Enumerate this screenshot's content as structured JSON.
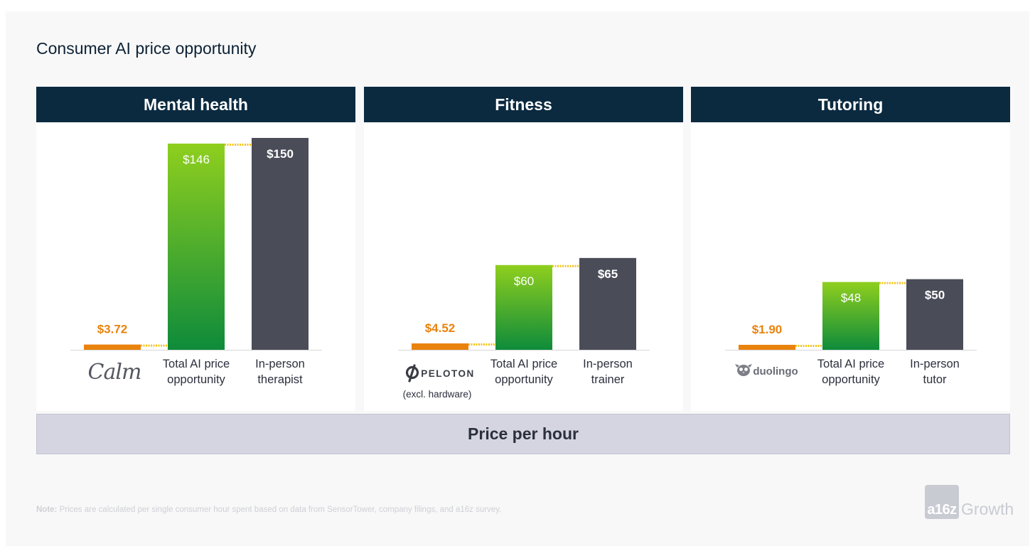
{
  "title": "Consumer AI price opportunity",
  "footer_bar": "Price per hour",
  "note": {
    "label": "Note:",
    "text": " Prices are calculated per single consumer hour spent based on data from SensorTower, company filings, and a16z survey."
  },
  "brand": {
    "box": "a16z",
    "word": "Growth"
  },
  "colors": {
    "header": "#0b2a40",
    "app_bar": "#e9830d",
    "ai_bar_top": "#8fcf1e",
    "ai_bar_bottom": "#0e8b3b",
    "in_person_bar": "#4a4c58",
    "gap_dots": "#f3c318",
    "app_value_text": "#e9830d"
  },
  "chart_data": [
    {
      "type": "bar",
      "title": "Mental health",
      "categories": [
        "Calm",
        "Total AI price opportunity",
        "In-person therapist"
      ],
      "values": [
        3.72,
        146,
        150
      ],
      "value_labels": [
        "$3.72",
        "$146",
        "$150"
      ],
      "brand_logo": {
        "name": "Calm",
        "icon": "calm-logo"
      },
      "labels": [
        "",
        "Total AI price\nopportunity",
        "In-person\ntherapist"
      ],
      "ylim": [
        0,
        150
      ],
      "grid": false
    },
    {
      "type": "bar",
      "title": "Fitness",
      "categories": [
        "Peloton",
        "Total AI price opportunity",
        "In-person trainer"
      ],
      "values": [
        4.52,
        60,
        65
      ],
      "value_labels": [
        "$4.52",
        "$60",
        "$65"
      ],
      "brand_logo": {
        "name": "PELOTON",
        "icon": "peloton-logo",
        "sub": "(excl. hardware)"
      },
      "labels": [
        "",
        "Total AI price\nopportunity",
        "In-person\ntrainer"
      ],
      "ylim": [
        0,
        150
      ],
      "grid": false
    },
    {
      "type": "bar",
      "title": "Tutoring",
      "categories": [
        "duolingo",
        "Total AI price opportunity",
        "In-person tutor"
      ],
      "values": [
        1.9,
        48,
        50
      ],
      "value_labels": [
        "$1.90",
        "$48",
        "$50"
      ],
      "brand_logo": {
        "name": "duolingo",
        "icon": "duolingo-owl-logo"
      },
      "labels": [
        "",
        "Total AI price\nopportunity",
        "In-person\ntutor"
      ],
      "ylim": [
        0,
        150
      ],
      "grid": false
    }
  ]
}
